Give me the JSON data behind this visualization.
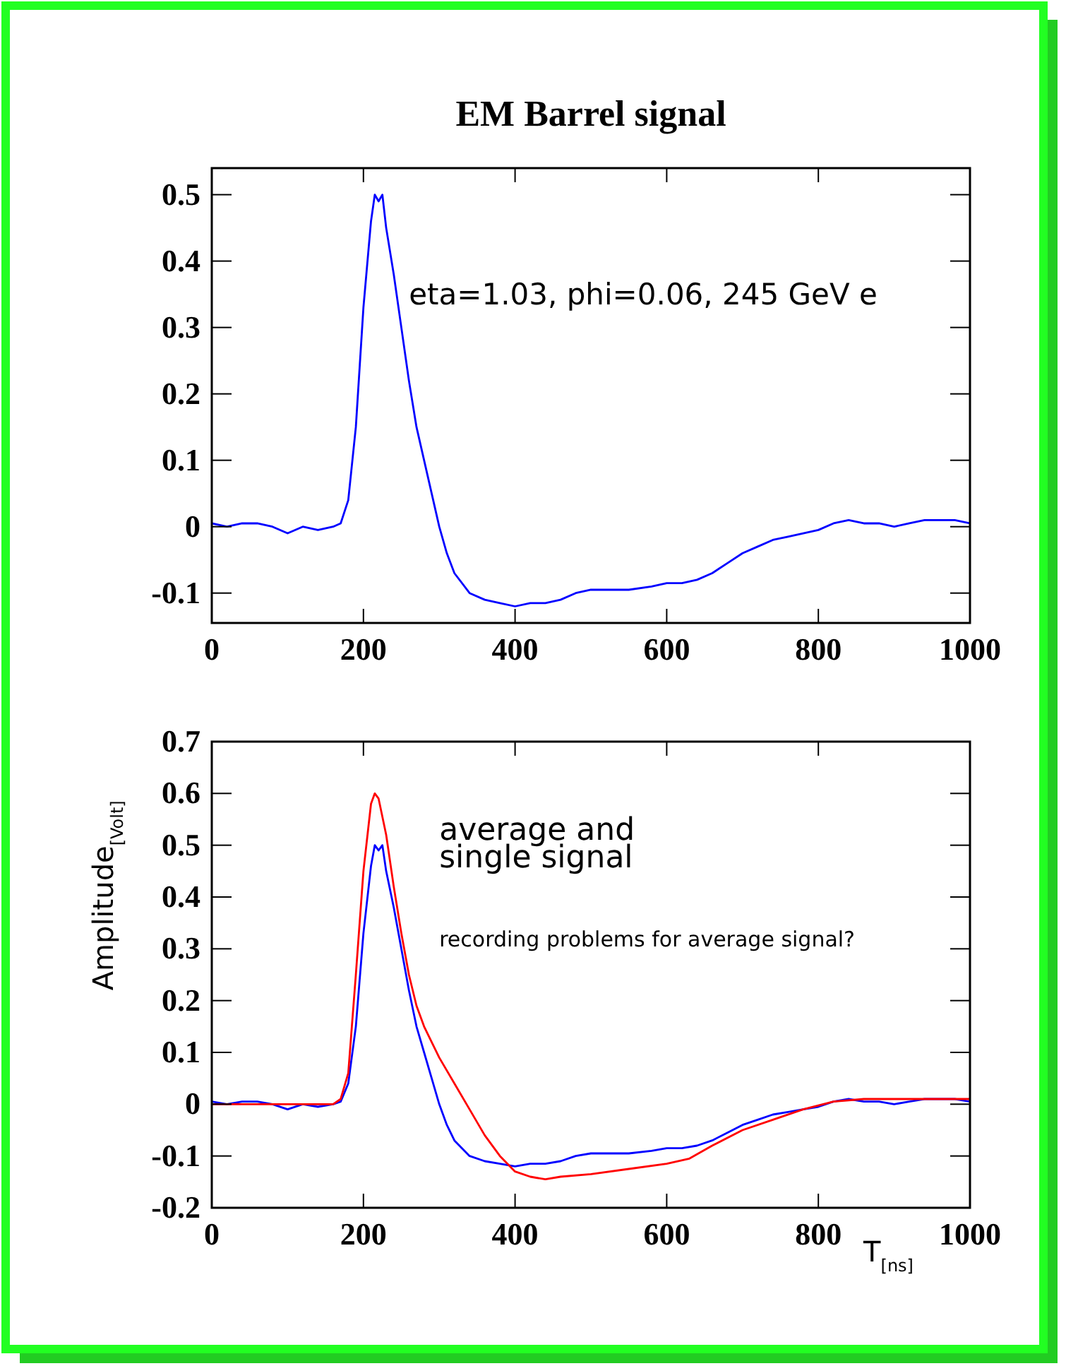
{
  "chart_data": [
    {
      "type": "line",
      "title": "EM Barrel signal",
      "xlim": [
        0,
        1000
      ],
      "xticks": [
        0,
        200,
        400,
        600,
        800,
        1000
      ],
      "ylim": [
        -0.145,
        0.54
      ],
      "yticks": [
        -0.1,
        0,
        0.1,
        0.2,
        0.3,
        0.4,
        0.5
      ],
      "grid": false,
      "annotations": [
        "eta=1.03, phi=0.06, 245 GeV e"
      ],
      "series": [
        {
          "color": "#0000ff",
          "x": [
            0,
            20,
            40,
            60,
            80,
            100,
            120,
            140,
            160,
            170,
            180,
            190,
            200,
            210,
            215,
            220,
            225,
            230,
            240,
            250,
            260,
            270,
            280,
            290,
            300,
            310,
            320,
            340,
            360,
            380,
            400,
            420,
            440,
            460,
            480,
            500,
            520,
            550,
            580,
            600,
            620,
            640,
            660,
            680,
            700,
            720,
            740,
            760,
            780,
            800,
            820,
            840,
            860,
            880,
            900,
            920,
            940,
            960,
            980,
            1000
          ],
          "values": [
            0.005,
            0,
            0.005,
            0.005,
            0,
            -0.01,
            0,
            -0.005,
            0,
            0.005,
            0.04,
            0.15,
            0.33,
            0.46,
            0.5,
            0.49,
            0.5,
            0.45,
            0.38,
            0.3,
            0.22,
            0.15,
            0.1,
            0.05,
            0,
            -0.04,
            -0.07,
            -0.1,
            -0.11,
            -0.115,
            -0.12,
            -0.115,
            -0.115,
            -0.11,
            -0.1,
            -0.095,
            -0.095,
            -0.095,
            -0.09,
            -0.085,
            -0.085,
            -0.08,
            -0.07,
            -0.055,
            -0.04,
            -0.03,
            -0.02,
            -0.015,
            -0.01,
            -0.005,
            0.005,
            0.01,
            0.005,
            0.005,
            0,
            0.005,
            0.01,
            0.01,
            0.01,
            0.005
          ]
        }
      ]
    },
    {
      "type": "line",
      "xlabel": "T$_{[ns]}$",
      "ylabel": "Amplitude$_{[Volt]}$",
      "xlim": [
        0,
        1000
      ],
      "xticks": [
        0,
        200,
        400,
        600,
        800,
        1000
      ],
      "ylim": [
        -0.2,
        0.7
      ],
      "yticks": [
        -0.2,
        -0.1,
        0,
        0.1,
        0.2,
        0.3,
        0.4,
        0.5,
        0.6,
        0.7
      ],
      "grid": false,
      "annotations": [
        "average and",
        "single signal",
        "recording problems for average signal?"
      ],
      "series": [
        {
          "color": "#0000ff",
          "x": [
            0,
            20,
            40,
            60,
            80,
            100,
            120,
            140,
            160,
            170,
            180,
            190,
            200,
            210,
            215,
            220,
            225,
            230,
            240,
            250,
            260,
            270,
            280,
            290,
            300,
            310,
            320,
            340,
            360,
            380,
            400,
            420,
            440,
            460,
            480,
            500,
            520,
            550,
            580,
            600,
            620,
            640,
            660,
            680,
            700,
            720,
            740,
            760,
            780,
            800,
            820,
            840,
            860,
            880,
            900,
            920,
            940,
            960,
            980,
            1000
          ],
          "values": [
            0.005,
            0,
            0.005,
            0.005,
            0,
            -0.01,
            0,
            -0.005,
            0,
            0.005,
            0.04,
            0.15,
            0.33,
            0.46,
            0.5,
            0.49,
            0.5,
            0.45,
            0.38,
            0.3,
            0.22,
            0.15,
            0.1,
            0.05,
            0,
            -0.04,
            -0.07,
            -0.1,
            -0.11,
            -0.115,
            -0.12,
            -0.115,
            -0.115,
            -0.11,
            -0.1,
            -0.095,
            -0.095,
            -0.095,
            -0.09,
            -0.085,
            -0.085,
            -0.08,
            -0.07,
            -0.055,
            -0.04,
            -0.03,
            -0.02,
            -0.015,
            -0.01,
            -0.005,
            0.005,
            0.01,
            0.005,
            0.005,
            0,
            0.005,
            0.01,
            0.01,
            0.01,
            0.005
          ]
        },
        {
          "color": "#ff0000",
          "x": [
            0,
            100,
            160,
            170,
            180,
            190,
            200,
            210,
            215,
            220,
            230,
            240,
            250,
            260,
            270,
            280,
            290,
            300,
            320,
            340,
            360,
            380,
            400,
            420,
            440,
            460,
            500,
            550,
            600,
            630,
            660,
            700,
            740,
            780,
            820,
            860,
            900,
            950,
            1000
          ],
          "values": [
            0,
            0,
            0,
            0.01,
            0.06,
            0.25,
            0.45,
            0.58,
            0.6,
            0.59,
            0.52,
            0.42,
            0.33,
            0.25,
            0.19,
            0.15,
            0.12,
            0.09,
            0.04,
            -0.01,
            -0.06,
            -0.1,
            -0.13,
            -0.14,
            -0.145,
            -0.14,
            -0.135,
            -0.125,
            -0.115,
            -0.105,
            -0.08,
            -0.05,
            -0.03,
            -0.01,
            0.005,
            0.01,
            0.01,
            0.01,
            0.01
          ]
        }
      ]
    }
  ]
}
